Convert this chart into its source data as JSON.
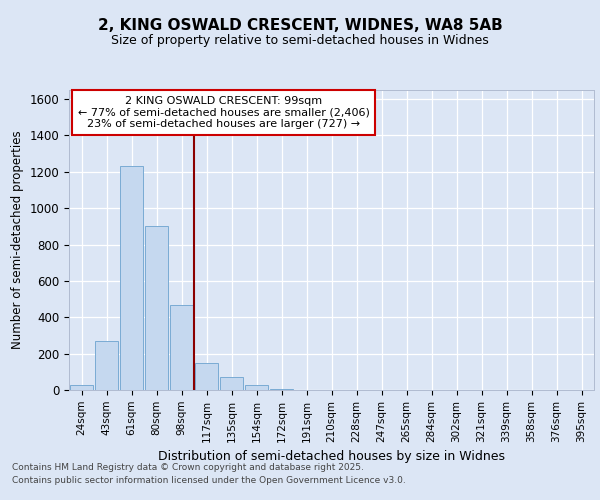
{
  "title_line1": "2, KING OSWALD CRESCENT, WIDNES, WA8 5AB",
  "title_line2": "Size of property relative to semi-detached houses in Widnes",
  "xlabel": "Distribution of semi-detached houses by size in Widnes",
  "ylabel": "Number of semi-detached properties",
  "categories": [
    "24sqm",
    "43sqm",
    "61sqm",
    "80sqm",
    "98sqm",
    "117sqm",
    "135sqm",
    "154sqm",
    "172sqm",
    "191sqm",
    "210sqm",
    "228sqm",
    "247sqm",
    "265sqm",
    "284sqm",
    "302sqm",
    "321sqm",
    "339sqm",
    "358sqm",
    "376sqm",
    "395sqm"
  ],
  "values": [
    30,
    270,
    1230,
    900,
    470,
    150,
    70,
    25,
    5,
    0,
    0,
    0,
    0,
    0,
    0,
    0,
    0,
    0,
    0,
    0,
    0
  ],
  "bar_color": "#c5d8ef",
  "bar_edge_color": "#7aabd4",
  "vline_color": "#8b0000",
  "vline_position": 4.5,
  "annotation_title": "2 KING OSWALD CRESCENT: 99sqm",
  "annotation_line1": "← 77% of semi-detached houses are smaller (2,406)",
  "annotation_line2": "23% of semi-detached houses are larger (727) →",
  "annotation_box_edgecolor": "#cc0000",
  "ylim": [
    0,
    1650
  ],
  "yticks": [
    0,
    200,
    400,
    600,
    800,
    1000,
    1200,
    1400,
    1600
  ],
  "bg_color": "#dce6f5",
  "footnote_line1": "Contains HM Land Registry data © Crown copyright and database right 2025.",
  "footnote_line2": "Contains public sector information licensed under the Open Government Licence v3.0."
}
